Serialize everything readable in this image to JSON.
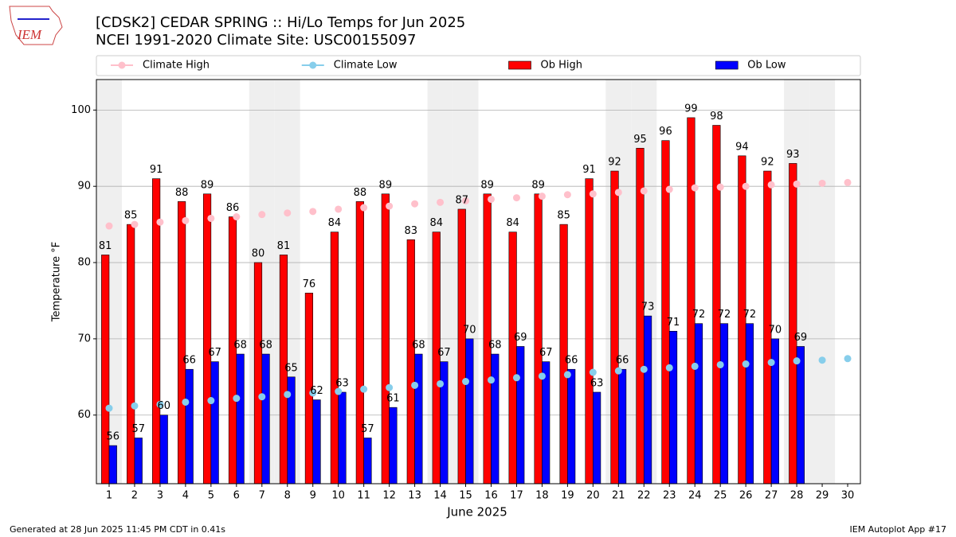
{
  "chart_data": {
    "type": "bar",
    "title": "[CDSK2] CEDAR SPRING :: Hi/Lo Temps for Jun 2025",
    "subtitle": "NCEI 1991-2020 Climate Site: USC00155097",
    "xlabel": "June 2025",
    "ylabel": "Temperature °F",
    "footer_left": "Generated at 28 Jun 2025 11:45 PM CDT in 0.41s",
    "footer_right": "IEM Autoplot App #17",
    "logo_text": "IEM",
    "x": [
      1,
      2,
      3,
      4,
      5,
      6,
      7,
      8,
      9,
      10,
      11,
      12,
      13,
      14,
      15,
      16,
      17,
      18,
      19,
      20,
      21,
      22,
      23,
      24,
      25,
      26,
      27,
      28,
      29,
      30
    ],
    "xlim": [
      0.5,
      30.5
    ],
    "xticks": [
      1,
      2,
      3,
      4,
      5,
      6,
      7,
      8,
      9,
      10,
      11,
      12,
      13,
      14,
      15,
      16,
      17,
      18,
      19,
      20,
      21,
      22,
      23,
      24,
      25,
      26,
      27,
      28,
      29,
      30
    ],
    "ylim": [
      51,
      104
    ],
    "yticks": [
      60,
      70,
      80,
      90,
      100
    ],
    "grid": true,
    "shaded_days": [
      1,
      7,
      8,
      14,
      15,
      21,
      22,
      28,
      29
    ],
    "shade_color": "#efefef",
    "series": [
      {
        "name": "Climate High",
        "type": "line",
        "color": "#ffc0cb",
        "values": [
          84.8,
          85.0,
          85.3,
          85.5,
          85.8,
          86.0,
          86.3,
          86.5,
          86.7,
          87.0,
          87.2,
          87.4,
          87.7,
          87.9,
          88.1,
          88.3,
          88.5,
          88.7,
          88.9,
          89.0,
          89.2,
          89.4,
          89.6,
          89.8,
          89.9,
          90.0,
          90.2,
          90.3,
          90.4,
          90.5
        ]
      },
      {
        "name": "Climate Low",
        "type": "line",
        "color": "#87ceeb",
        "values": [
          60.9,
          61.2,
          61.4,
          61.7,
          61.9,
          62.2,
          62.4,
          62.7,
          62.9,
          63.1,
          63.4,
          63.6,
          63.9,
          64.1,
          64.4,
          64.6,
          64.9,
          65.1,
          65.3,
          65.6,
          65.8,
          66.0,
          66.2,
          66.4,
          66.6,
          66.7,
          66.9,
          67.1,
          67.2,
          67.4
        ]
      },
      {
        "name": "Ob High",
        "type": "bar",
        "color": "#ff0000",
        "values": [
          81,
          85,
          91,
          88,
          89,
          86,
          80,
          81,
          76,
          84,
          88,
          89,
          83,
          84,
          87,
          89,
          84,
          89,
          85,
          91,
          92,
          95,
          96,
          99,
          98,
          94,
          92,
          93,
          null,
          null
        ]
      },
      {
        "name": "Ob Low",
        "type": "bar",
        "color": "#0000ff",
        "values": [
          56,
          57,
          60,
          66,
          67,
          68,
          68,
          65,
          62,
          63,
          57,
          61,
          68,
          67,
          70,
          68,
          69,
          67,
          66,
          63,
          66,
          73,
          71,
          72,
          72,
          72,
          70,
          69,
          null,
          null
        ]
      }
    ]
  }
}
